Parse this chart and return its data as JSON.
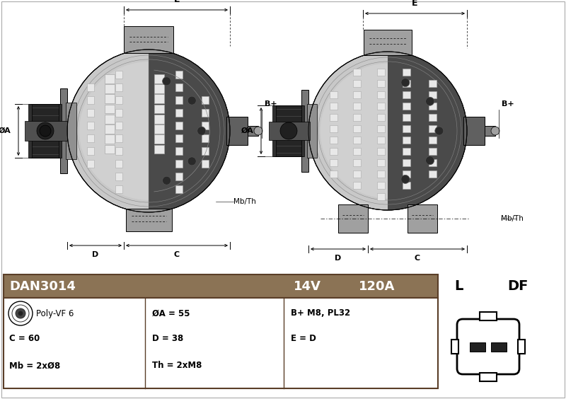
{
  "bg_color": "#ffffff",
  "header_bg": "#8B7355",
  "header_text_color": "#ffffff",
  "table_border_color": "#5a3e28",
  "part_number": "DAN3014",
  "voltage": "14V",
  "current": "120A",
  "spec1_label": "Poly-VF 6",
  "spec2_label": "ØA = 55",
  "spec3_label": "B+ M8, PL32",
  "spec4_label": "C = 60",
  "spec5_label": "D = 38",
  "spec6_label": "E = D",
  "spec7_label": "Mb = 2xØ8",
  "spec8_label": "Th = 2xM8",
  "connector_label_l": "L",
  "connector_label_df": "DF",
  "body_light": "#c8c8c8",
  "body_mid": "#a0a0a0",
  "body_dark": "#787878",
  "body_darker": "#505050",
  "cap_dark": "#383838",
  "cap_mid": "#606060",
  "slot_color": "#e8e8e8",
  "slot_outline": "#aaaaaa",
  "pulley_dark": "#252525",
  "pulley_groove": "#181818"
}
